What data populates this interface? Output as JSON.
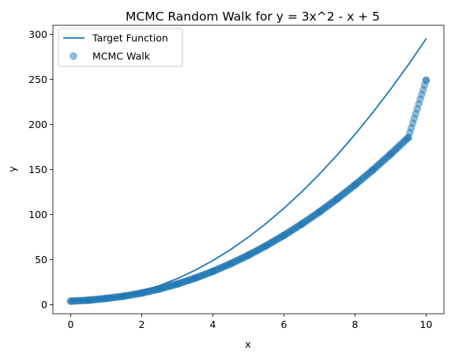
{
  "chart_data": {
    "type": "line",
    "title": "MCMC Random Walk for y = 3x^2 - x + 5",
    "xlabel": "x",
    "ylabel": "y",
    "xlim": [
      -0.5,
      10.5
    ],
    "ylim": [
      -10,
      310
    ],
    "x_ticks": [
      0,
      2,
      4,
      6,
      8,
      10
    ],
    "y_ticks": [
      0,
      50,
      100,
      150,
      200,
      250,
      300
    ],
    "grid": false,
    "legend_position": "top-left",
    "series": [
      {
        "name": "Target Function",
        "kind": "line",
        "color": "#1f77b4",
        "x": [
          0,
          0.5,
          1,
          1.5,
          2,
          2.5,
          3,
          3.5,
          4,
          4.5,
          5,
          5.5,
          6,
          6.5,
          7,
          7.5,
          8,
          8.5,
          9,
          9.5,
          10
        ],
        "y": [
          5,
          5.25,
          7,
          10.25,
          15,
          21.25,
          29,
          38.25,
          49,
          61.25,
          75,
          90.25,
          107,
          125.25,
          145,
          166.25,
          189,
          213.25,
          239,
          266.25,
          295
        ]
      },
      {
        "name": "MCMC Walk",
        "kind": "scatter",
        "color": "#1f77b4",
        "alpha": 0.5,
        "x": [
          0,
          0.5,
          1,
          1.5,
          2,
          2.5,
          3,
          3.5,
          4,
          4.5,
          5,
          5.5,
          6,
          6.5,
          7,
          7.5,
          8,
          8.5,
          9,
          9.5,
          10
        ],
        "y": [
          4,
          5,
          7,
          9.5,
          13,
          17.5,
          23,
          29.5,
          37,
          45.5,
          55,
          65.5,
          77,
          89.5,
          103,
          117.5,
          133,
          149.5,
          167,
          185.5,
          249
        ]
      }
    ]
  }
}
